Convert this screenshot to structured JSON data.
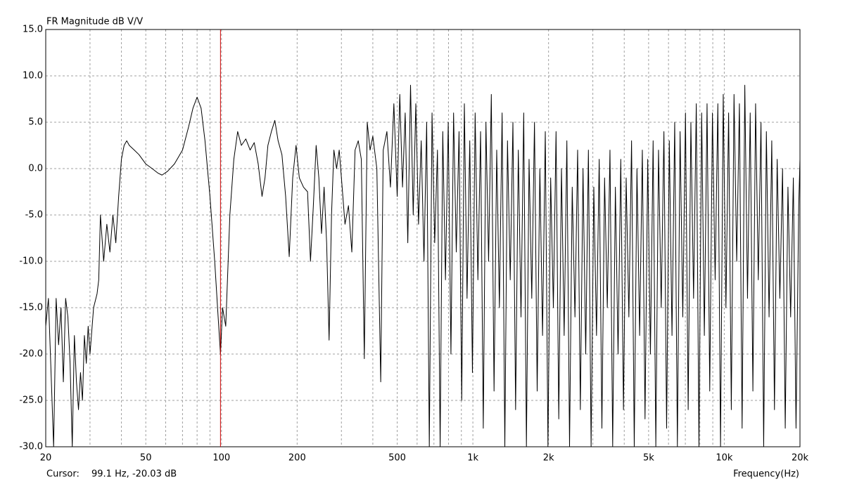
{
  "chart_data": {
    "type": "line",
    "title": "FR Magnitude dB V/V",
    "x_label": "Frequency(Hz)",
    "cursor_label": "Cursor:",
    "cursor_text": "99.1 Hz, -20.03 dB",
    "cursor_x": 99.1,
    "cursor_color": "#cc0000",
    "xscale": "log",
    "xlim": [
      20,
      20000
    ],
    "ylim": [
      -30,
      15
    ],
    "xticks": [
      20,
      50,
      100,
      200,
      500,
      {
        "value": 1000,
        "label": "1k"
      },
      {
        "value": 2000,
        "label": "2k"
      },
      {
        "value": 5000,
        "label": "5k"
      },
      {
        "value": 10000,
        "label": "10k"
      },
      {
        "value": 20000,
        "label": "20k"
      }
    ],
    "xgrid_minor": [
      30,
      40,
      60,
      70,
      80,
      90,
      300,
      400,
      600,
      700,
      800,
      900,
      3000,
      4000,
      6000,
      7000,
      8000,
      9000
    ],
    "yticks": [
      {
        "value": 15,
        "label": "15.0"
      },
      {
        "value": 10,
        "label": "10.0"
      },
      {
        "value": 5,
        "label": "5.0"
      },
      {
        "value": 0,
        "label": "0.0"
      },
      {
        "value": -5,
        "label": "-5.0"
      },
      {
        "value": -10,
        "label": "-10.0"
      },
      {
        "value": -15,
        "label": "-15.0"
      },
      {
        "value": -20,
        "label": "-20.0"
      },
      {
        "value": -25,
        "label": "-25.0"
      },
      {
        "value": -30,
        "label": "-30.0"
      }
    ],
    "grid": true,
    "color": "#000000",
    "x": [
      20,
      20.5,
      21,
      21.5,
      22,
      22.5,
      23,
      23.5,
      24,
      24.5,
      25,
      25.5,
      26,
      26.5,
      27,
      27.5,
      28,
      28.5,
      29,
      29.5,
      30,
      31,
      32,
      32.5,
      33,
      34,
      35,
      36,
      37,
      38,
      39,
      40,
      41,
      42,
      43,
      45,
      47,
      50,
      53,
      56,
      58,
      61,
      65,
      70,
      74,
      77,
      80,
      83,
      86,
      90,
      94,
      97,
      99.1,
      101,
      104,
      108,
      112,
      116,
      120,
      125,
      130,
      135,
      140,
      145,
      149,
      153,
      158,
      163,
      168,
      174,
      180,
      186,
      192,
      198,
      204,
      212,
      220,
      226,
      232,
      238,
      244,
      250,
      256,
      262,
      268,
      274,
      280,
      287,
      294,
      300,
      310,
      320,
      330,
      340,
      350,
      360,
      370,
      380,
      390,
      400,
      415,
      430,
      440,
      455,
      470,
      485,
      500,
      512,
      525,
      538,
      551,
      565,
      579,
      593,
      608,
      623,
      639,
      655,
      671,
      688,
      705,
      723,
      741,
      759,
      778,
      798,
      818,
      838,
      859,
      881,
      903,
      925,
      948,
      972,
      996,
      1021,
      1047,
      1073,
      1100,
      1127,
      1155,
      1184,
      1214,
      1244,
      1275,
      1307,
      1340,
      1373,
      1408,
      1443,
      1479,
      1516,
      1554,
      1593,
      1633,
      1673,
      1715,
      1758,
      1802,
      1847,
      1893,
      1941,
      1989,
      2039,
      2090,
      2142,
      2196,
      2251,
      2307,
      2365,
      2424,
      2484,
      2547,
      2610,
      2676,
      2742,
      2811,
      2881,
      2953,
      3027,
      3103,
      3180,
      3260,
      3341,
      3425,
      3510,
      3598,
      3688,
      3780,
      3875,
      3972,
      4071,
      4173,
      4277,
      4384,
      4494,
      4606,
      4721,
      4839,
      4960,
      5084,
      5211,
      5342,
      5475,
      5612,
      5753,
      5896,
      6044,
      6195,
      6350,
      6508,
      6671,
      6838,
      7009,
      7184,
      7364,
      7548,
      7737,
      7930,
      8128,
      8331,
      8540,
      8753,
      8972,
      9197,
      9427,
      9662,
      9904,
      10151,
      10405,
      10665,
      10932,
      11205,
      11485,
      11773,
      12067,
      12369,
      12678,
      12995,
      13320,
      13653,
      13994,
      14344,
      14703,
      15070,
      15447,
      15833,
      16229,
      16635,
      17051,
      17477,
      17914,
      18362,
      18821,
      19291,
      19773,
      20000
    ],
    "values": [
      -17,
      -14,
      -22,
      -30,
      -14,
      -19,
      -15,
      -23,
      -14,
      -16,
      -21,
      -30,
      -18,
      -23,
      -26,
      -22,
      -25,
      -18,
      -21,
      -17,
      -20,
      -15,
      -13.5,
      -12,
      -5,
      -10,
      -6,
      -9,
      -5,
      -8,
      -3,
      1,
      2.5,
      3,
      2.5,
      2,
      1.5,
      0.5,
      0,
      -0.5,
      -0.7,
      -0.3,
      0.5,
      2,
      4.5,
      6.5,
      7.7,
      6.5,
      3,
      -3,
      -10,
      -16,
      -20.03,
      -15,
      -17,
      -5,
      1,
      4,
      2.5,
      3.2,
      2,
      2.8,
      0.5,
      -3,
      -1,
      2.5,
      4,
      5.2,
      3,
      1.5,
      -3,
      -9.5,
      -1,
      2.5,
      -1,
      -2,
      -2.5,
      -10,
      -4,
      2.5,
      -1,
      -7,
      -2,
      -8,
      -18.5,
      -5,
      2,
      0,
      2,
      -1,
      -6,
      -4,
      -9,
      2,
      3,
      1,
      -20.5,
      5,
      2,
      3.5,
      0,
      -23,
      2,
      4,
      -2,
      7,
      -3,
      8,
      -2,
      6,
      -8,
      9,
      -5,
      7,
      -6,
      3,
      -10,
      5,
      -30,
      6,
      -8,
      2,
      -30,
      4,
      -12,
      5,
      -20,
      6,
      -9,
      4,
      -25,
      7,
      -14,
      3,
      -22,
      6,
      -12,
      4,
      -28,
      5,
      -10,
      8,
      -24,
      2,
      -15,
      6,
      -30,
      3,
      -12,
      5,
      -26,
      2,
      -16,
      6,
      -30,
      1,
      -14,
      5,
      -24,
      0,
      -18,
      4,
      -30,
      -1,
      -15,
      4,
      -27,
      0,
      -18,
      3,
      -30,
      -2,
      -16,
      2,
      -26,
      0,
      -20,
      2,
      -30,
      -2,
      -18,
      1,
      -28,
      -1,
      -15,
      2,
      -30,
      -2,
      -20,
      1,
      -26,
      -1,
      -16,
      3,
      -30,
      0,
      -18,
      2,
      -27,
      1,
      -20,
      3,
      -30,
      2,
      -15,
      4,
      -28,
      3,
      -18,
      5,
      -30,
      4,
      -16,
      6,
      -26,
      5,
      -14,
      7,
      -30,
      6,
      -18,
      7,
      -24,
      6,
      -12,
      7,
      -30,
      8,
      -15,
      6,
      -26,
      8,
      -10,
      7,
      -28,
      9,
      -14,
      6,
      -24,
      7,
      -12,
      5,
      -30,
      4,
      -16,
      3,
      -26,
      1,
      -14,
      0,
      -28,
      -2,
      -16,
      -1,
      -28,
      -4,
      1
    ]
  }
}
